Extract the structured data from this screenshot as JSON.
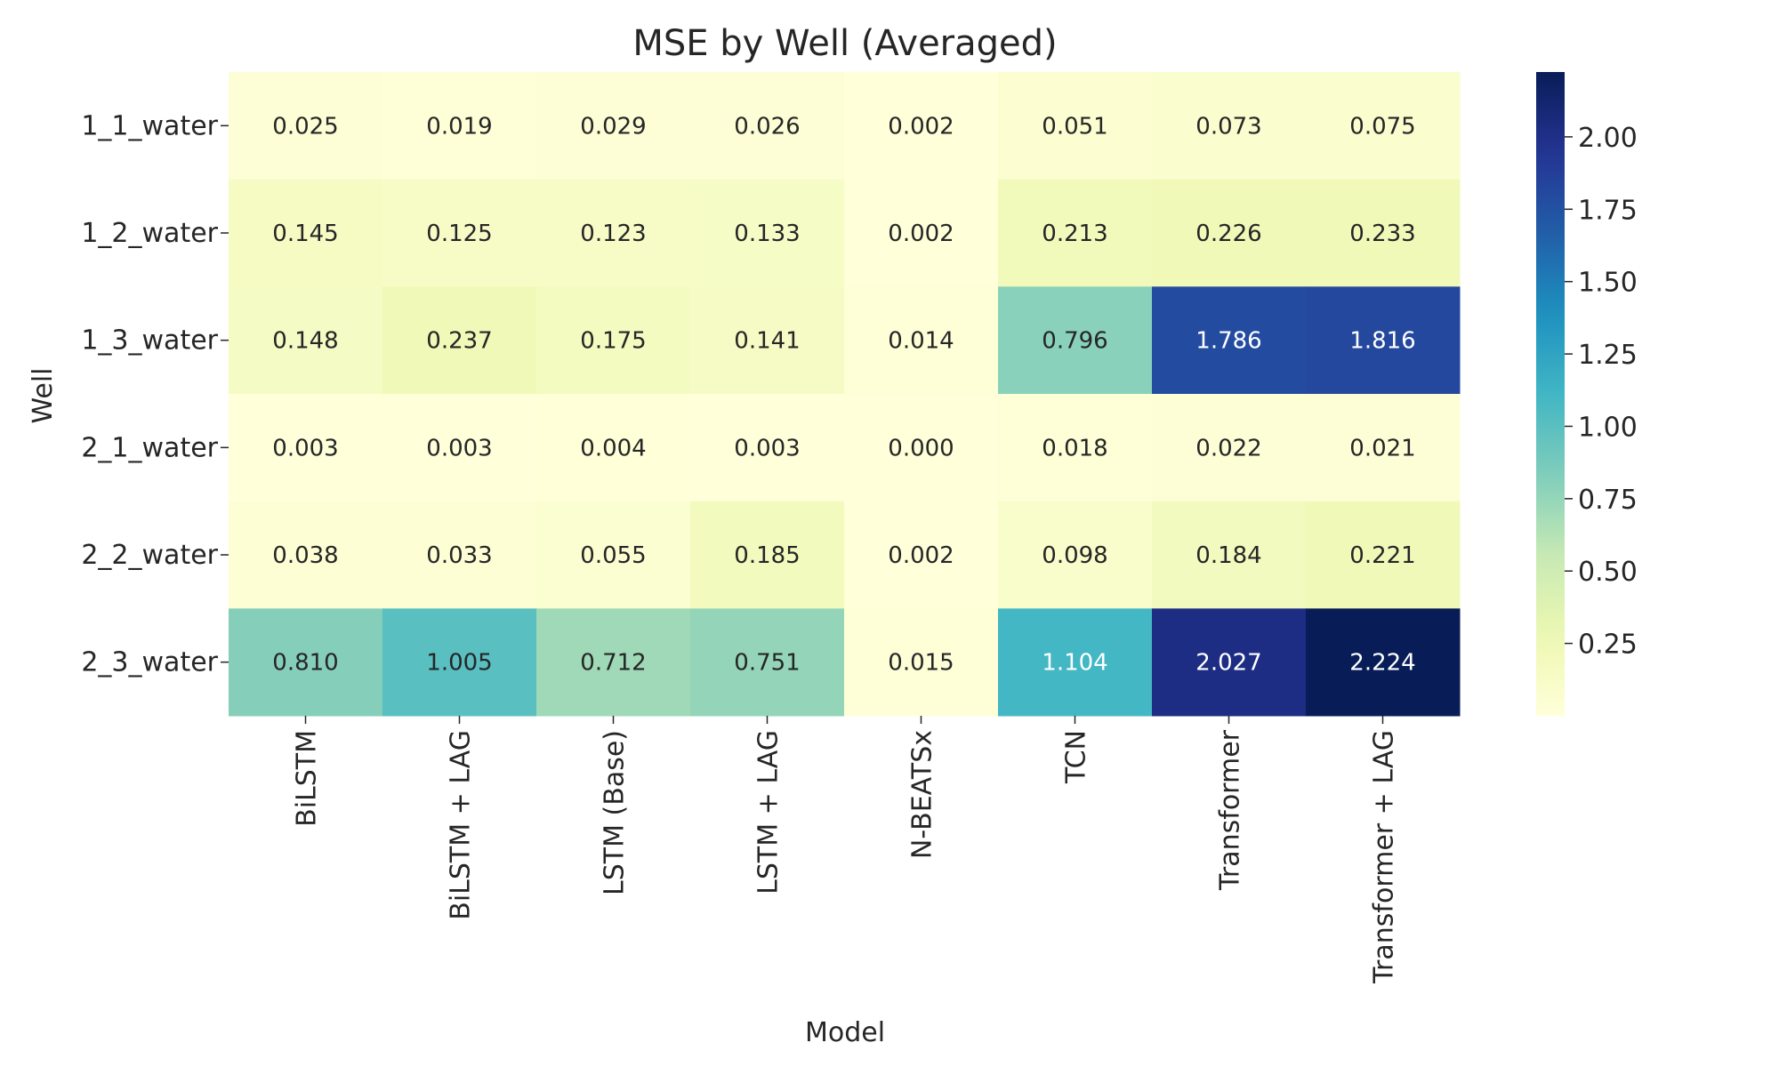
{
  "chart_data": {
    "type": "heatmap",
    "title": "MSE by Well (Averaged)",
    "xlabel": "Model",
    "ylabel": "Well",
    "x_categories": [
      "BiLSTM",
      "BiLSTM + LAG",
      "LSTM (Base)",
      "LSTM + LAG",
      "N-BEATSx",
      "TCN",
      "Transformer",
      "Transformer + LAG"
    ],
    "y_categories": [
      "1_1_water",
      "1_2_water",
      "1_3_water",
      "2_1_water",
      "2_2_water",
      "2_3_water"
    ],
    "values": [
      [
        0.025,
        0.019,
        0.029,
        0.026,
        0.002,
        0.051,
        0.073,
        0.075
      ],
      [
        0.145,
        0.125,
        0.123,
        0.133,
        0.002,
        0.213,
        0.226,
        0.233
      ],
      [
        0.148,
        0.237,
        0.175,
        0.141,
        0.014,
        0.796,
        1.786,
        1.816
      ],
      [
        0.003,
        0.003,
        0.004,
        0.003,
        0.0,
        0.018,
        0.022,
        0.021
      ],
      [
        0.038,
        0.033,
        0.055,
        0.185,
        0.002,
        0.098,
        0.184,
        0.221
      ],
      [
        0.81,
        1.005,
        0.712,
        0.751,
        0.015,
        1.104,
        2.027,
        2.224
      ]
    ],
    "value_labels": [
      [
        "0.025",
        "0.019",
        "0.029",
        "0.026",
        "0.002",
        "0.051",
        "0.073",
        "0.075"
      ],
      [
        "0.145",
        "0.125",
        "0.123",
        "0.133",
        "0.002",
        "0.213",
        "0.226",
        "0.233"
      ],
      [
        "0.148",
        "0.237",
        "0.175",
        "0.141",
        "0.014",
        "0.796",
        "1.786",
        "1.816"
      ],
      [
        "0.003",
        "0.003",
        "0.004",
        "0.003",
        "0.000",
        "0.018",
        "0.022",
        "0.021"
      ],
      [
        "0.038",
        "0.033",
        "0.055",
        "0.185",
        "0.002",
        "0.098",
        "0.184",
        "0.221"
      ],
      [
        "0.810",
        "1.005",
        "0.712",
        "0.751",
        "0.015",
        "1.104",
        "2.027",
        "2.224"
      ]
    ],
    "colorbar": {
      "colormap": "YlGnBu",
      "vmin": 0.0,
      "vmax": 2.224,
      "ticks": [
        0.25,
        0.5,
        0.75,
        1.0,
        1.25,
        1.5,
        1.75,
        2.0
      ],
      "tick_labels": [
        "0.25",
        "0.50",
        "0.75",
        "1.00",
        "1.25",
        "1.50",
        "1.75",
        "2.00"
      ]
    },
    "grid": false,
    "legend": "colorbar-right"
  }
}
